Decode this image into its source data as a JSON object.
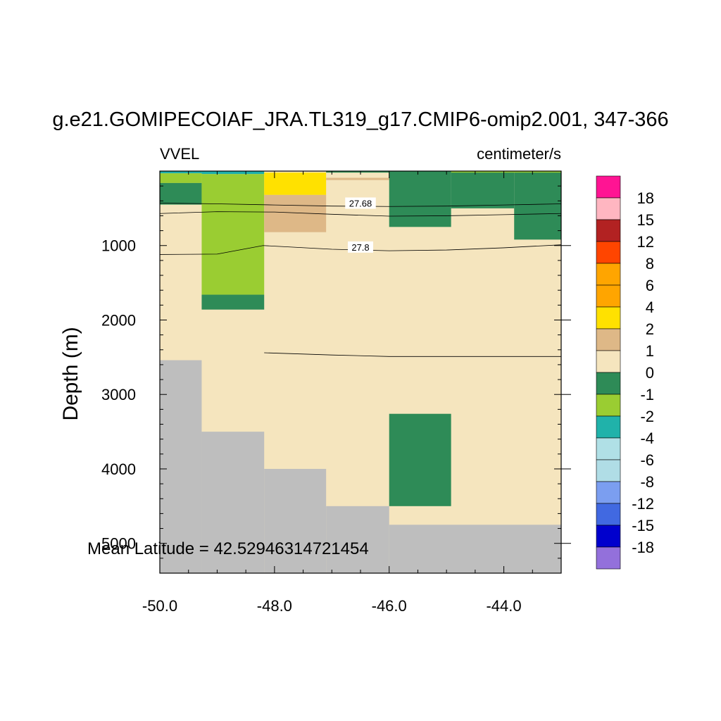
{
  "chart_data": {
    "type": "heatmap",
    "title": "g.e21.GOMIPECOIAF_JRA.TL319_g17.CMIP6-omip2.001, 347-366",
    "subtitle_left": "VVEL",
    "subtitle_right": "centimeter/s",
    "xlabel": "",
    "ylabel": "Depth (m)",
    "xlim": [
      -50.0,
      -43.0
    ],
    "ylim": [
      0,
      5400
    ],
    "y_inverted": true,
    "xticks": [
      -50.0,
      -48.0,
      -46.0,
      -44.0
    ],
    "xtick_labels": [
      "-50.0",
      "-48.0",
      "-46.0",
      "-44.0"
    ],
    "yticks": [
      1000,
      2000,
      3000,
      4000,
      5000
    ],
    "ytick_labels": [
      "1000",
      "2000",
      "3000",
      "4000",
      "5000"
    ],
    "annotation": "Mean Latitude = 42.52946314721454",
    "background_color": "#f5e5be",
    "land_color": "#bebebe",
    "cells": [
      {
        "x0": -50.0,
        "x1": -49.27,
        "d0": 0,
        "d1": 30,
        "color": "#1fb0ac"
      },
      {
        "x0": -49.27,
        "x1": -48.18,
        "d0": 0,
        "d1": 40,
        "color": "#1fb0ac"
      },
      {
        "x0": -50.0,
        "x1": -49.27,
        "d0": 30,
        "d1": 160,
        "color": "#9acd32"
      },
      {
        "x0": -50.0,
        "x1": -49.27,
        "d0": 160,
        "d1": 450,
        "color": "#2e8b57"
      },
      {
        "x0": -49.27,
        "x1": -48.18,
        "d0": 40,
        "d1": 1660,
        "color": "#9acd32"
      },
      {
        "x0": -49.27,
        "x1": -48.18,
        "d0": 1660,
        "d1": 1860,
        "color": "#2e8b57"
      },
      {
        "x0": -48.18,
        "x1": -47.1,
        "d0": 20,
        "d1": 320,
        "color": "#ffe100"
      },
      {
        "x0": -48.18,
        "x1": -47.1,
        "d0": 320,
        "d1": 820,
        "color": "#deb887"
      },
      {
        "x0": -47.1,
        "x1": -46.0,
        "d0": 90,
        "d1": 120,
        "color": "#deb887"
      },
      {
        "x0": -47.1,
        "x1": -46.0,
        "d0": 0,
        "d1": 20,
        "color": "#2e8b57"
      },
      {
        "x0": -46.0,
        "x1": -44.92,
        "d0": 0,
        "d1": 750,
        "color": "#2e8b57"
      },
      {
        "x0": -44.92,
        "x1": -43.82,
        "d0": 0,
        "d1": 500,
        "color": "#2e8b57"
      },
      {
        "x0": -43.82,
        "x1": -43.0,
        "d0": 0,
        "d1": 920,
        "color": "#2e8b57"
      },
      {
        "x0": -44.92,
        "x1": -43.0,
        "d0": 0,
        "d1": 20,
        "color": "#9acd32"
      },
      {
        "x0": -46.0,
        "x1": -44.92,
        "d0": 3260,
        "d1": 4500,
        "color": "#2e8b57"
      }
    ],
    "land": [
      {
        "x0": -50.0,
        "x1": -49.27,
        "d0": 2540,
        "d1": 5400
      },
      {
        "x0": -49.27,
        "x1": -48.18,
        "d0": 3500,
        "d1": 5400
      },
      {
        "x0": -48.18,
        "x1": -47.1,
        "d0": 4000,
        "d1": 5400
      },
      {
        "x0": -47.1,
        "x1": -46.0,
        "d0": 4500,
        "d1": 5400
      },
      {
        "x0": -46.0,
        "x1": -43.0,
        "d0": 4750,
        "d1": 5400
      }
    ],
    "contours": [
      {
        "label": "27.68",
        "label_at": [
          -46.5,
          430
        ],
        "points": [
          [
            -50.0,
            430
          ],
          [
            -49.0,
            440
          ],
          [
            -48.0,
            455
          ],
          [
            -47.0,
            470
          ],
          [
            -46.0,
            475
          ],
          [
            -45.0,
            470
          ],
          [
            -44.0,
            455
          ],
          [
            -43.0,
            440
          ]
        ]
      },
      {
        "label": "",
        "label_at": null,
        "points": [
          [
            -50.0,
            570
          ],
          [
            -49.0,
            545
          ],
          [
            -48.0,
            550
          ],
          [
            -47.0,
            580
          ],
          [
            -46.0,
            605
          ],
          [
            -45.0,
            600
          ],
          [
            -44.0,
            585
          ],
          [
            -43.0,
            570
          ]
        ]
      },
      {
        "label": "27.8",
        "label_at": [
          -46.5,
          1020
        ],
        "points": [
          [
            -50.0,
            1120
          ],
          [
            -49.0,
            1115
          ],
          [
            -48.2,
            1000
          ],
          [
            -47.0,
            1050
          ],
          [
            -46.0,
            1070
          ],
          [
            -45.0,
            1060
          ],
          [
            -44.0,
            1030
          ],
          [
            -43.0,
            990
          ]
        ]
      },
      {
        "label": "",
        "label_at": null,
        "points": [
          [
            -48.18,
            2440
          ],
          [
            -47.0,
            2470
          ],
          [
            -46.0,
            2490
          ],
          [
            -45.0,
            2490
          ],
          [
            -44.0,
            2490
          ],
          [
            -43.0,
            2490
          ]
        ]
      }
    ],
    "colorbar": {
      "labels": [
        "18",
        "15",
        "12",
        "8",
        "6",
        "4",
        "2",
        "1",
        "0",
        "-1",
        "-2",
        "-4",
        "-6",
        "-8",
        "-12",
        "-15",
        "-18"
      ],
      "colors": [
        "#ff1493",
        "#ffb6c1",
        "#b22222",
        "#ff4500",
        "#ffa500",
        "#ffa500",
        "#ffe100",
        "#deb887",
        "#f5e5be",
        "#2e8b57",
        "#9acd32",
        "#20b2aa",
        "#b0e0e6",
        "#b0dde6",
        "#7b9ef0",
        "#4169e1",
        "#0000cd",
        "#9370db"
      ]
    }
  }
}
